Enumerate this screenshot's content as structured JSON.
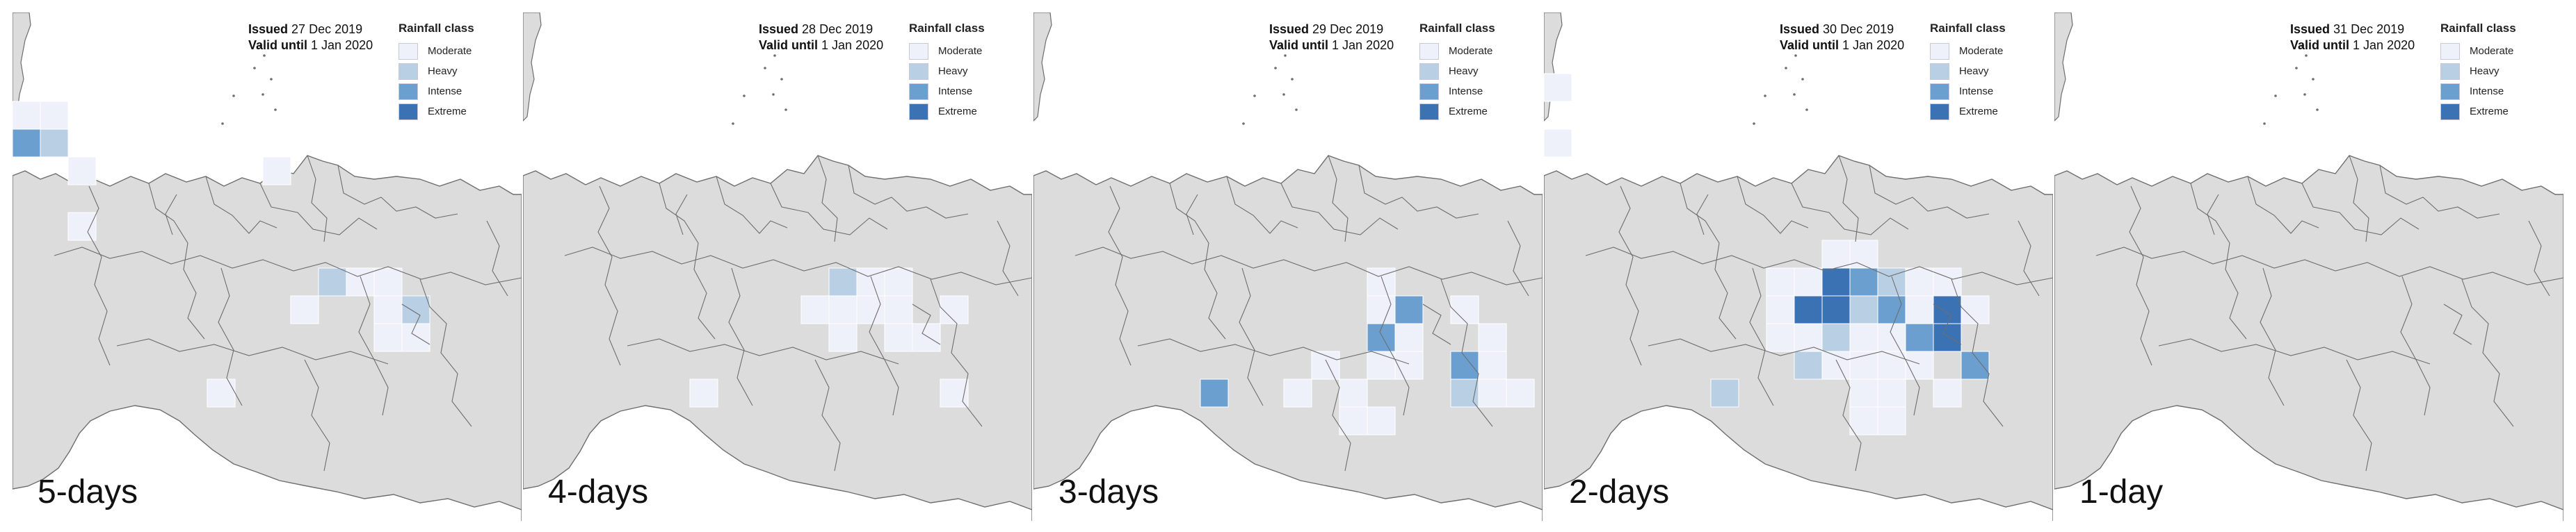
{
  "legend": {
    "title": "Rainfall class",
    "classes": [
      {
        "label": "Moderate",
        "color": "#eef0fa"
      },
      {
        "label": "Heavy",
        "color": "#b9cfe4"
      },
      {
        "label": "Intense",
        "color": "#6b9fcf"
      },
      {
        "label": "Extreme",
        "color": "#3a72b4"
      }
    ]
  },
  "issued_label": "Issued",
  "valid_label": "Valid until",
  "colors": {
    "land": "#dcdcdc",
    "sea": "#ffffff",
    "border": "#6e6e6e"
  },
  "panels": [
    {
      "lead": "5-days",
      "issued_date": "27 Dec 2019",
      "valid_date": "1 Jan 2020",
      "cells": [
        {
          "col": 0,
          "row": 2,
          "cls": 0
        },
        {
          "col": 1,
          "row": 2,
          "cls": 0
        },
        {
          "col": 0,
          "row": 3,
          "cls": 2
        },
        {
          "col": 1,
          "row": 3,
          "cls": 1
        },
        {
          "col": 2,
          "row": 4,
          "cls": 0
        },
        {
          "col": 9,
          "row": 4,
          "cls": 0
        },
        {
          "col": 2,
          "row": 6,
          "cls": 0
        },
        {
          "col": 11,
          "row": 8,
          "cls": 1
        },
        {
          "col": 12,
          "row": 8,
          "cls": 0
        },
        {
          "col": 13,
          "row": 8,
          "cls": 0
        },
        {
          "col": 10,
          "row": 9,
          "cls": 0
        },
        {
          "col": 13,
          "row": 9,
          "cls": 0
        },
        {
          "col": 14,
          "row": 9,
          "cls": 1
        },
        {
          "col": 13,
          "row": 10,
          "cls": 0
        },
        {
          "col": 14,
          "row": 10,
          "cls": 0
        },
        {
          "col": 7,
          "row": 12,
          "cls": 0
        }
      ]
    },
    {
      "lead": "4-days",
      "issued_date": "28 Dec 2019",
      "valid_date": "1 Jan 2020",
      "cells": [
        {
          "col": 11,
          "row": 8,
          "cls": 1
        },
        {
          "col": 12,
          "row": 8,
          "cls": 0
        },
        {
          "col": 13,
          "row": 8,
          "cls": 0
        },
        {
          "col": 10,
          "row": 9,
          "cls": 0
        },
        {
          "col": 11,
          "row": 9,
          "cls": 0
        },
        {
          "col": 12,
          "row": 9,
          "cls": 0
        },
        {
          "col": 13,
          "row": 9,
          "cls": 0
        },
        {
          "col": 15,
          "row": 9,
          "cls": 0
        },
        {
          "col": 11,
          "row": 10,
          "cls": 0
        },
        {
          "col": 13,
          "row": 10,
          "cls": 0
        },
        {
          "col": 14,
          "row": 10,
          "cls": 0
        },
        {
          "col": 6,
          "row": 12,
          "cls": 0
        },
        {
          "col": 15,
          "row": 12,
          "cls": 0
        }
      ]
    },
    {
      "lead": "3-days",
      "issued_date": "29 Dec 2019",
      "valid_date": "1 Jan 2020",
      "cells": [
        {
          "col": 12,
          "row": 8,
          "cls": 0
        },
        {
          "col": 12,
          "row": 9,
          "cls": 0
        },
        {
          "col": 13,
          "row": 9,
          "cls": 2
        },
        {
          "col": 15,
          "row": 9,
          "cls": 0
        },
        {
          "col": 12,
          "row": 10,
          "cls": 2
        },
        {
          "col": 13,
          "row": 10,
          "cls": 0
        },
        {
          "col": 16,
          "row": 10,
          "cls": 0
        },
        {
          "col": 10,
          "row": 11,
          "cls": 0
        },
        {
          "col": 12,
          "row": 11,
          "cls": 0
        },
        {
          "col": 13,
          "row": 11,
          "cls": 0
        },
        {
          "col": 15,
          "row": 11,
          "cls": 2
        },
        {
          "col": 16,
          "row": 11,
          "cls": 0
        },
        {
          "col": 6,
          "row": 12,
          "cls": 2
        },
        {
          "col": 9,
          "row": 12,
          "cls": 0
        },
        {
          "col": 11,
          "row": 12,
          "cls": 0
        },
        {
          "col": 15,
          "row": 12,
          "cls": 1
        },
        {
          "col": 16,
          "row": 12,
          "cls": 0
        },
        {
          "col": 17,
          "row": 12,
          "cls": 0
        },
        {
          "col": 11,
          "row": 13,
          "cls": 0
        },
        {
          "col": 12,
          "row": 13,
          "cls": 0
        }
      ]
    },
    {
      "lead": "2-days",
      "issued_date": "30 Dec 2019",
      "valid_date": "1 Jan 2020",
      "cells": [
        {
          "col": 0,
          "row": 1,
          "cls": 0
        },
        {
          "col": 0,
          "row": 3,
          "cls": 0
        },
        {
          "col": 10,
          "row": 7,
          "cls": 0
        },
        {
          "col": 11,
          "row": 7,
          "cls": 0
        },
        {
          "col": 8,
          "row": 8,
          "cls": 0
        },
        {
          "col": 9,
          "row": 8,
          "cls": 0
        },
        {
          "col": 10,
          "row": 8,
          "cls": 3
        },
        {
          "col": 11,
          "row": 8,
          "cls": 2
        },
        {
          "col": 12,
          "row": 8,
          "cls": 1
        },
        {
          "col": 13,
          "row": 8,
          "cls": 0
        },
        {
          "col": 14,
          "row": 8,
          "cls": 0
        },
        {
          "col": 8,
          "row": 9,
          "cls": 0
        },
        {
          "col": 9,
          "row": 9,
          "cls": 3
        },
        {
          "col": 10,
          "row": 9,
          "cls": 3
        },
        {
          "col": 11,
          "row": 9,
          "cls": 1
        },
        {
          "col": 12,
          "row": 9,
          "cls": 2
        },
        {
          "col": 13,
          "row": 9,
          "cls": 0
        },
        {
          "col": 14,
          "row": 9,
          "cls": 3
        },
        {
          "col": 15,
          "row": 9,
          "cls": 0
        },
        {
          "col": 8,
          "row": 10,
          "cls": 0
        },
        {
          "col": 9,
          "row": 10,
          "cls": 0
        },
        {
          "col": 10,
          "row": 10,
          "cls": 1
        },
        {
          "col": 11,
          "row": 10,
          "cls": 0
        },
        {
          "col": 12,
          "row": 10,
          "cls": 0
        },
        {
          "col": 13,
          "row": 10,
          "cls": 2
        },
        {
          "col": 14,
          "row": 10,
          "cls": 3
        },
        {
          "col": 9,
          "row": 11,
          "cls": 1
        },
        {
          "col": 10,
          "row": 11,
          "cls": 0
        },
        {
          "col": 11,
          "row": 11,
          "cls": 0
        },
        {
          "col": 12,
          "row": 11,
          "cls": 0
        },
        {
          "col": 13,
          "row": 11,
          "cls": 0
        },
        {
          "col": 15,
          "row": 11,
          "cls": 2
        },
        {
          "col": 6,
          "row": 12,
          "cls": 1
        },
        {
          "col": 11,
          "row": 12,
          "cls": 0
        },
        {
          "col": 12,
          "row": 12,
          "cls": 0
        },
        {
          "col": 14,
          "row": 12,
          "cls": 0
        },
        {
          "col": 11,
          "row": 13,
          "cls": 0
        },
        {
          "col": 12,
          "row": 13,
          "cls": 0
        }
      ]
    },
    {
      "lead": "1-day",
      "issued_date": "31 Dec 2019",
      "valid_date": "1 Jan 2020",
      "cells": []
    }
  ]
}
